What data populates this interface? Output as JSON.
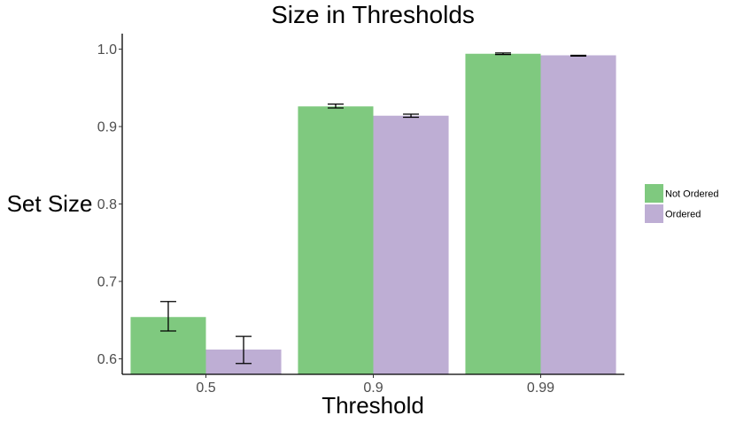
{
  "chart_data": {
    "type": "bar",
    "title": "Size in Thresholds",
    "xlabel": "Threshold",
    "ylabel": "Set Size",
    "categories": [
      "0.5",
      "0.9",
      "0.99"
    ],
    "ylim": [
      0.58,
      1.02
    ],
    "yticks": [
      "0.6",
      "0.7",
      "0.8",
      "0.9",
      "1.0"
    ],
    "series": [
      {
        "name": "Not Ordered",
        "color": "#7fc97f",
        "values": [
          0.654,
          0.926,
          0.994
        ],
        "error_low": [
          0.636,
          0.924,
          0.993
        ],
        "error_high": [
          0.674,
          0.929,
          0.995
        ]
      },
      {
        "name": "Ordered",
        "color": "#beaed4",
        "values": [
          0.612,
          0.914,
          0.992
        ],
        "error_low": [
          0.594,
          0.912,
          0.991
        ],
        "error_high": [
          0.629,
          0.916,
          0.992
        ]
      }
    ],
    "grid": false,
    "legend": "right"
  }
}
